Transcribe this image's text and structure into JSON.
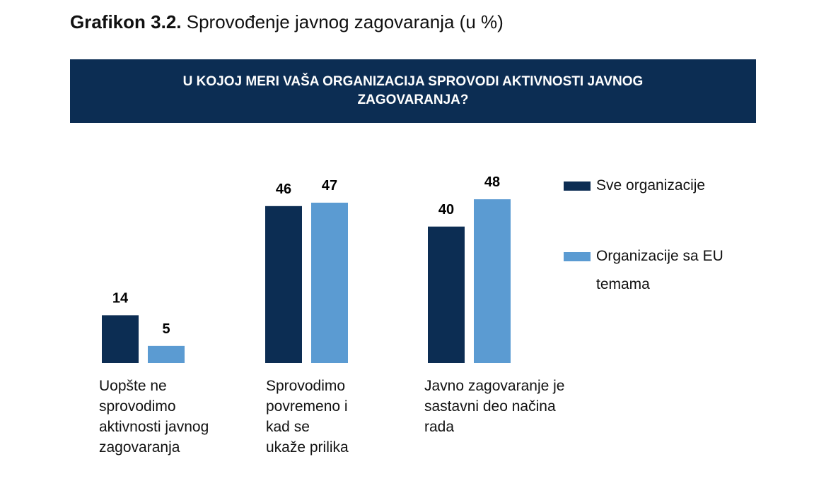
{
  "title_bold": "Grafikon 3.2.",
  "title_rest": "Sprovođenje javnog zagovaranja  (u %)",
  "banner": "U KOJOJ MERI  VAŠA ORGANIZACIJA SPROVODI AKTIVNOSTI JAVNOG ZAGOVARANJA?",
  "chart_data": {
    "type": "bar",
    "categories": [
      "Uopšte ne sprovodimo aktivnosti javnog zagovaranja",
      "Sprovodimo povremeno i kad se ukaže prilika",
      "Javno zagovaranje je sastavni deo načina rada"
    ],
    "series": [
      {
        "name": "Sve organizacije",
        "values": [
          14,
          46,
          40
        ],
        "color": "#0c2d53"
      },
      {
        "name": "Organizacije sa EU temama",
        "values": [
          5,
          47,
          48
        ],
        "color": "#5b9bd2"
      }
    ],
    "legend": "right",
    "grid": false,
    "data_labels": true
  }
}
